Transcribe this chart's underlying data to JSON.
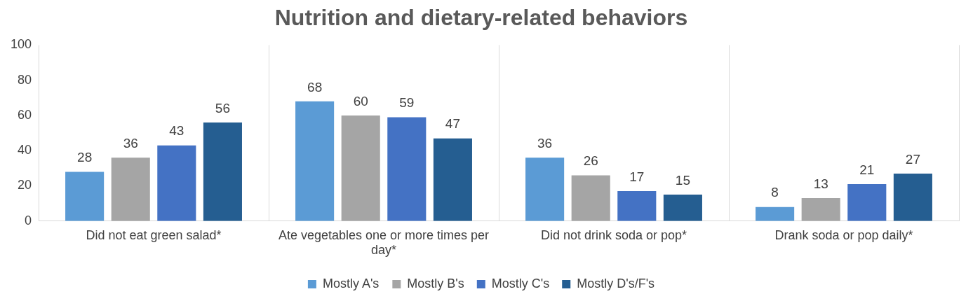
{
  "chart_data": {
    "type": "bar",
    "title": "Nutrition and dietary-related behaviors",
    "categories": [
      "Did not eat green salad*",
      "Ate vegetables one or more times per day*",
      "Did not drink soda or pop*",
      "Drank soda or pop daily*"
    ],
    "series": [
      {
        "name": "Mostly A's",
        "color": "#5b9bd5",
        "values": [
          28,
          68,
          36,
          8
        ]
      },
      {
        "name": "Mostly B's",
        "color": "#a5a5a5",
        "values": [
          36,
          60,
          26,
          13
        ]
      },
      {
        "name": "Mostly C's",
        "color": "#4472c4",
        "values": [
          43,
          59,
          17,
          21
        ]
      },
      {
        "name": "Mostly D's/F's",
        "color": "#255e91",
        "values": [
          56,
          47,
          15,
          27
        ]
      }
    ],
    "ylim": [
      0,
      100
    ],
    "yticks": [
      0,
      20,
      40,
      60,
      80,
      100
    ],
    "grid": "x",
    "legend": "bottom",
    "data_labels": true
  }
}
